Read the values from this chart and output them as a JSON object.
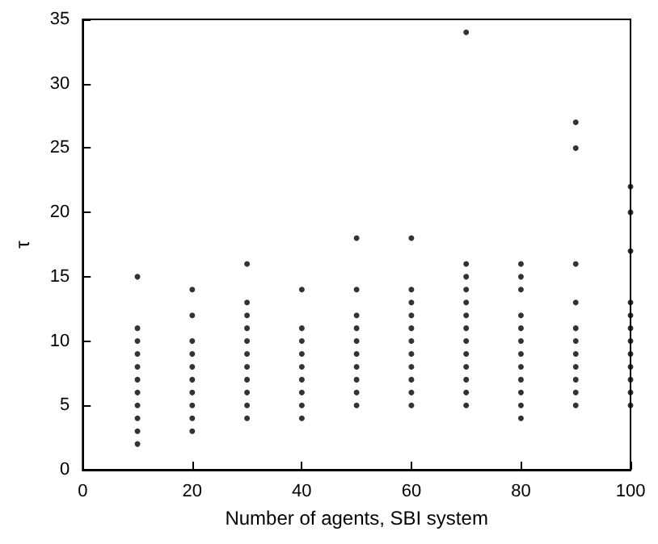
{
  "chart_data": {
    "type": "scatter",
    "xlabel": "Number of agents, SBI system",
    "ylabel": "τ",
    "marker": "circle",
    "grid": false,
    "xlim": [
      0,
      100
    ],
    "xticks": [
      0,
      20,
      40,
      60,
      80,
      100
    ],
    "ylim": [
      0,
      35
    ],
    "yticks": [
      0,
      5,
      10,
      15,
      20,
      25,
      30,
      35
    ],
    "series": [
      {
        "color": "#000000",
        "x": [
          10,
          10,
          10,
          10,
          10,
          10,
          10,
          10,
          10,
          10,
          10,
          20,
          20,
          20,
          20,
          20,
          20,
          20,
          20,
          20,
          20,
          30,
          30,
          30,
          30,
          30,
          30,
          30,
          30,
          30,
          30,
          30,
          40,
          40,
          40,
          40,
          40,
          40,
          40,
          40,
          40,
          50,
          50,
          50,
          50,
          50,
          50,
          50,
          50,
          50,
          50,
          60,
          60,
          60,
          60,
          60,
          60,
          60,
          60,
          60,
          60,
          60,
          70,
          70,
          70,
          70,
          70,
          70,
          70,
          70,
          70,
          70,
          70,
          70,
          70,
          80,
          80,
          80,
          80,
          80,
          80,
          80,
          80,
          80,
          80,
          80,
          80,
          90,
          90,
          90,
          90,
          90,
          90,
          90,
          90,
          90,
          90,
          90,
          100,
          100,
          100,
          100,
          100,
          100,
          100,
          100,
          100,
          100,
          100,
          100
        ],
        "values": [
          15,
          11,
          10,
          9,
          8,
          7,
          6,
          5,
          4,
          3,
          2,
          14,
          12,
          10,
          9,
          8,
          7,
          6,
          5,
          4,
          3,
          16,
          13,
          12,
          11,
          10,
          9,
          8,
          7,
          6,
          5,
          4,
          14,
          11,
          10,
          9,
          8,
          7,
          6,
          5,
          4,
          18,
          14,
          12,
          11,
          10,
          9,
          8,
          7,
          6,
          5,
          18,
          14,
          13,
          12,
          11,
          10,
          9,
          8,
          7,
          6,
          5,
          34,
          16,
          15,
          14,
          13,
          12,
          11,
          10,
          9,
          8,
          7,
          6,
          5,
          16,
          15,
          14,
          12,
          11,
          10,
          9,
          8,
          7,
          6,
          5,
          4,
          27,
          25,
          16,
          13,
          11,
          10,
          9,
          8,
          7,
          6,
          5,
          22,
          20,
          17,
          13,
          12,
          11,
          10,
          9,
          8,
          7,
          6,
          5
        ]
      }
    ]
  }
}
